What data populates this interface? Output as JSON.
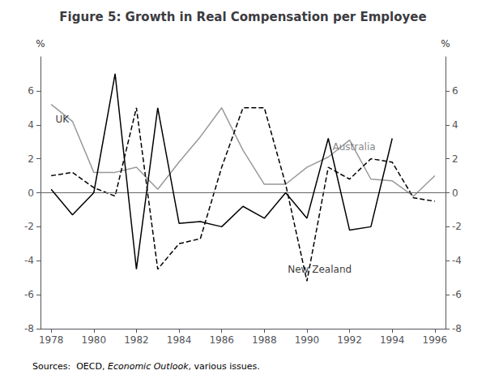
{
  "chart_data": {
    "type": "line",
    "title": "Figure 5: Growth in Real Compensation per Employee",
    "series": [
      {
        "name": "Australia",
        "color": "#999999",
        "line_style": "solid",
        "x": [
          1978,
          1979,
          1980,
          1981,
          1982,
          1983,
          1984,
          1985,
          1986,
          1987,
          1988,
          1989,
          1990,
          1991,
          1992,
          1993,
          1994,
          1995,
          1996
        ],
        "values": [
          5.2,
          4.2,
          1.2,
          1.2,
          1.5,
          0.2,
          1.8,
          3.3,
          5.0,
          2.5,
          0.5,
          0.5,
          1.5,
          2.1,
          3.1,
          0.8,
          0.7,
          -0.2,
          1.0
        ]
      },
      {
        "name": "New Zealand",
        "color": "#000000",
        "line_style": "dashed",
        "x": [
          1978,
          1979,
          1980,
          1981,
          1982,
          1983,
          1984,
          1985,
          1986,
          1987,
          1988,
          1989,
          1990,
          1991,
          1992,
          1993,
          1994,
          1995,
          1996
        ],
        "values": [
          1.0,
          1.2,
          0.3,
          -0.2,
          5.0,
          -4.5,
          -3.0,
          -2.7,
          1.5,
          5.0,
          5.0,
          0.5,
          -5.2,
          1.5,
          0.8,
          2.0,
          1.8,
          -0.3,
          -0.5
        ]
      },
      {
        "name": "UK",
        "color": "#000000",
        "line_style": "solid",
        "x": [
          1978,
          1979,
          1980,
          1981,
          1982,
          1983,
          1984,
          1985,
          1986,
          1987,
          1988,
          1989,
          1990,
          1991,
          1992,
          1993,
          1994
        ],
        "values": [
          0.2,
          -1.3,
          0.0,
          7.0,
          -4.5,
          5.0,
          -1.8,
          -1.7,
          -2.0,
          -0.8,
          -1.5,
          0.0,
          -1.5,
          3.2,
          -2.2,
          -2.0,
          3.2
        ]
      }
    ],
    "xlim": [
      1977.5,
      1996.5
    ],
    "xticks": [
      1978,
      1980,
      1982,
      1984,
      1986,
      1988,
      1990,
      1992,
      1994,
      1996
    ],
    "ylim": [
      -8,
      8
    ],
    "yticks": [
      -8,
      -6,
      -4,
      -2,
      0,
      2,
      4,
      6
    ],
    "y2lim": [
      -8,
      8
    ],
    "y2ticks": [
      -8,
      -6,
      -4,
      -2,
      0,
      2,
      4,
      6
    ],
    "ylabel": "%",
    "y2label": "%",
    "grid": false,
    "reference_line": 0,
    "annotations": [
      {
        "text": "UK",
        "x": 1978.2,
        "y": 4.3,
        "color": "#000000"
      },
      {
        "text": "Australia",
        "x": 1991.2,
        "y": 2.7,
        "color": "#666666"
      },
      {
        "text": "New Zealand",
        "x": 1989.1,
        "y": -4.5,
        "color": "#000000"
      }
    ],
    "footnote": [
      {
        "text": "Sources:  OECD, ",
        "style": "normal"
      },
      {
        "text": "Economic Outlook",
        "style": "italic"
      },
      {
        "text": ", various issues.",
        "style": "normal"
      }
    ]
  }
}
